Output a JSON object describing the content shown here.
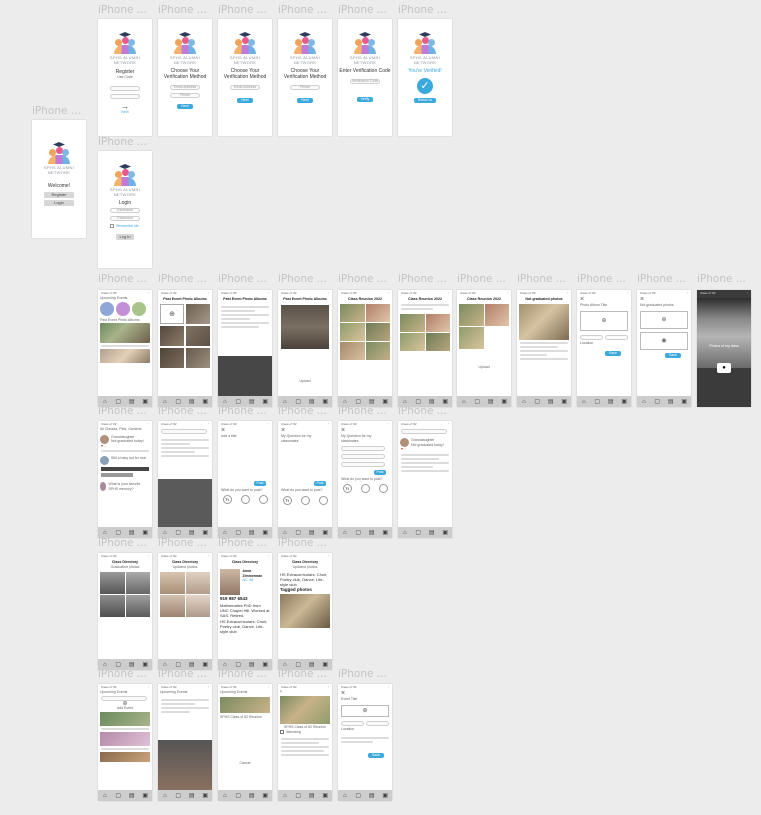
{
  "frame_label": "iPhone ...",
  "brand": {
    "logo_sub": "SPHS ALUMNI NETWORK",
    "colors": {
      "accent": "#3ca9dd",
      "tabbar": "#cdcdcd",
      "canvas": "#ececec"
    }
  },
  "welcome": {
    "title": "Welcome!",
    "register": "Register",
    "login": "Login"
  },
  "register": {
    "title": "Register",
    "line": "Use Code",
    "next": "Next"
  },
  "choose_method": {
    "title": "Choose Your Verification Method",
    "email": "Email Address",
    "phone": "Phone",
    "next": "Next"
  },
  "enter_code": {
    "title": "Enter Verification Code",
    "code": "Verification Code",
    "verify": "Verify"
  },
  "verified": {
    "title": "You're Verified!",
    "go": "Return to Login"
  },
  "login": {
    "title": "Login",
    "username": "Username",
    "password": "Password",
    "remember": "Remember Me",
    "login_btn": "Log In"
  },
  "screens": {
    "past_albums": "Past Event Photo Albums",
    "reunion_2022": "Class Reunion 2022",
    "not_graduated": "Not graduated photos",
    "photo_album_title": "Photo Album Title",
    "class_directory": "Class Directory",
    "upcoming_events": "Upcoming Events",
    "event_title": "Event Title"
  },
  "feed": {
    "filters": "All Classes, Pets, Gardens",
    "post1_author": "Granddaughter",
    "post1_text": "Not graduated today!",
    "post2_text": "Still a baby but for real",
    "post3_text": "What is your favorite SPHS memory?"
  },
  "composer": {
    "add_title": "Add a title",
    "prompt": "What do you want to post?",
    "post": "Post",
    "question": "My Question for my classmates",
    "options": [
      "Text",
      "Photo",
      "Poll",
      "Image"
    ]
  },
  "directory": {
    "toggle_a": "Graduation photos",
    "toggle_b": "Updated photos",
    "names": [
      "Anna Z.",
      "Paul W.",
      "Jane D.",
      "Mark S."
    ],
    "profile_name": "Anna Zimmerman",
    "profile_location": "NC, 84",
    "profile_phone": "919 987 6543",
    "profile_bio": "Mathematics PhD from UNC Chapel Hill. Worked at SAS. Retired.",
    "profile_extra": "HS Extracurriculars: Choir, Poetry club, Dance, Life-style club",
    "tagged_photos": "Tagged photos"
  },
  "misc": {
    "photos_of_class": "Photos of my class",
    "upload": "Upload",
    "cancel": "Cancel",
    "location": "Location",
    "save": "Save",
    "add_event": "Add Event",
    "event_desc": "SPHS Class of 82 Reunion",
    "attending": "Attending"
  }
}
